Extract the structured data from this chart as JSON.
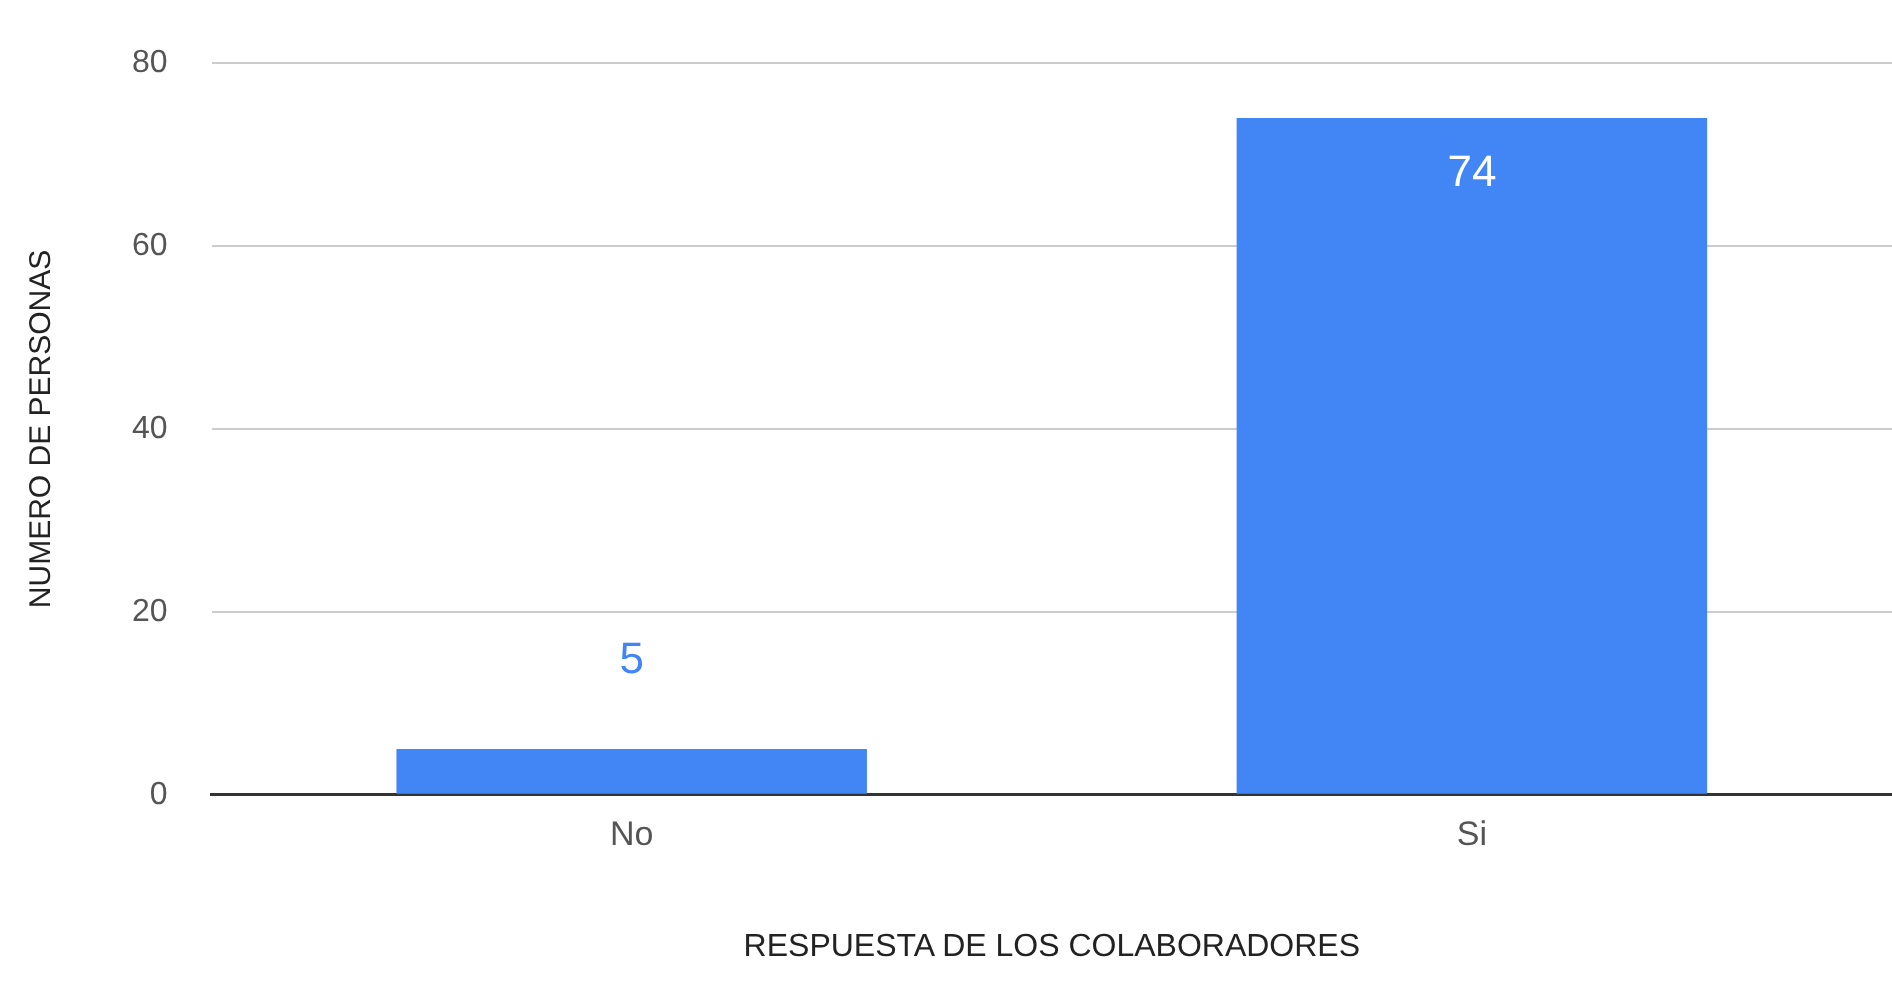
{
  "chart_data": {
    "type": "bar",
    "xlabel": "RESPUESTA DE LOS COLABORADORES",
    "ylabel": "NUMERO DE PERSONAS",
    "categories": [
      "No",
      "Si"
    ],
    "values": [
      5,
      74
    ],
    "color": "#4285f4",
    "ylim": [
      0,
      80
    ],
    "yticks": [
      0,
      20,
      40,
      60,
      80
    ],
    "grid": "y",
    "data_labels": true
  }
}
